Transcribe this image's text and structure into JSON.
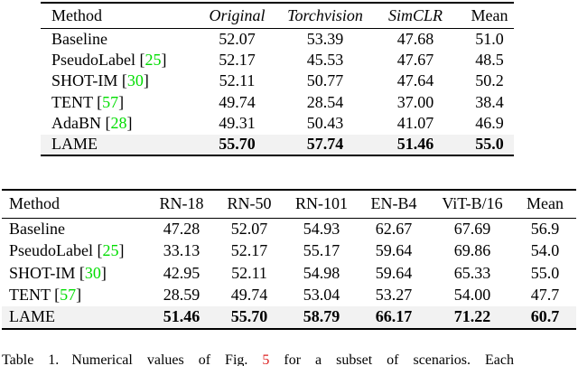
{
  "colors": {
    "citation_green": "#00dd00",
    "figure_ref_red": "#dd2020",
    "highlight_row_gray": "#f2f2f2",
    "text": "#000000",
    "background": "#ffffff"
  },
  "table1": {
    "columns": [
      {
        "label": "Method",
        "italic": false
      },
      {
        "label": "Original",
        "italic": true
      },
      {
        "label": "Torchvision",
        "italic": true
      },
      {
        "label": "SimCLR",
        "italic": true
      },
      {
        "label": "Mean",
        "italic": false
      }
    ],
    "rows": [
      {
        "method": "Baseline",
        "cite": null,
        "values": [
          "52.07",
          "53.39",
          "47.68",
          "51.0"
        ],
        "bold": false,
        "highlight": false
      },
      {
        "method": "PseudoLabel",
        "cite": "25",
        "values": [
          "52.17",
          "45.53",
          "47.67",
          "48.5"
        ],
        "bold": false,
        "highlight": false
      },
      {
        "method": "SHOT-IM",
        "cite": "30",
        "values": [
          "52.11",
          "50.77",
          "47.64",
          "50.2"
        ],
        "bold": false,
        "highlight": false
      },
      {
        "method": "TENT",
        "cite": "57",
        "values": [
          "49.74",
          "28.54",
          "37.00",
          "38.4"
        ],
        "bold": false,
        "highlight": false
      },
      {
        "method": "AdaBN",
        "cite": "28",
        "values": [
          "49.31",
          "50.43",
          "41.07",
          "46.9"
        ],
        "bold": false,
        "highlight": false
      },
      {
        "method": "LAME",
        "cite": null,
        "values": [
          "55.70",
          "57.74",
          "51.46",
          "55.0"
        ],
        "bold": true,
        "highlight": true
      }
    ]
  },
  "table2": {
    "columns": [
      {
        "label": "Method",
        "italic": false
      },
      {
        "label": "RN-18",
        "italic": false
      },
      {
        "label": "RN-50",
        "italic": false
      },
      {
        "label": "RN-101",
        "italic": false
      },
      {
        "label": "EN-B4",
        "italic": false
      },
      {
        "label": "ViT-B/16",
        "italic": false
      },
      {
        "label": "Mean",
        "italic": false
      }
    ],
    "rows": [
      {
        "method": "Baseline",
        "cite": null,
        "values": [
          "47.28",
          "52.07",
          "54.93",
          "62.67",
          "67.69",
          "56.9"
        ],
        "bold": false,
        "highlight": false
      },
      {
        "method": "PseudoLabel",
        "cite": "25",
        "values": [
          "33.13",
          "52.17",
          "55.17",
          "59.64",
          "69.86",
          "54.0"
        ],
        "bold": false,
        "highlight": false
      },
      {
        "method": "SHOT-IM",
        "cite": "30",
        "values": [
          "42.95",
          "52.11",
          "54.98",
          "59.64",
          "65.33",
          "55.0"
        ],
        "bold": false,
        "highlight": false
      },
      {
        "method": "TENT",
        "cite": "57",
        "values": [
          "28.59",
          "49.74",
          "53.04",
          "53.27",
          "54.00",
          "47.7"
        ],
        "bold": false,
        "highlight": false
      },
      {
        "method": "LAME",
        "cite": null,
        "values": [
          "51.46",
          "55.70",
          "58.79",
          "66.17",
          "71.22",
          "60.7"
        ],
        "bold": true,
        "highlight": true
      }
    ]
  },
  "caption": {
    "label": "Table 1.",
    "text_before_ref": "Numerical values of Fig.",
    "fig_ref": "5",
    "text_after_ref": "for a subset of scenarios. Each"
  }
}
